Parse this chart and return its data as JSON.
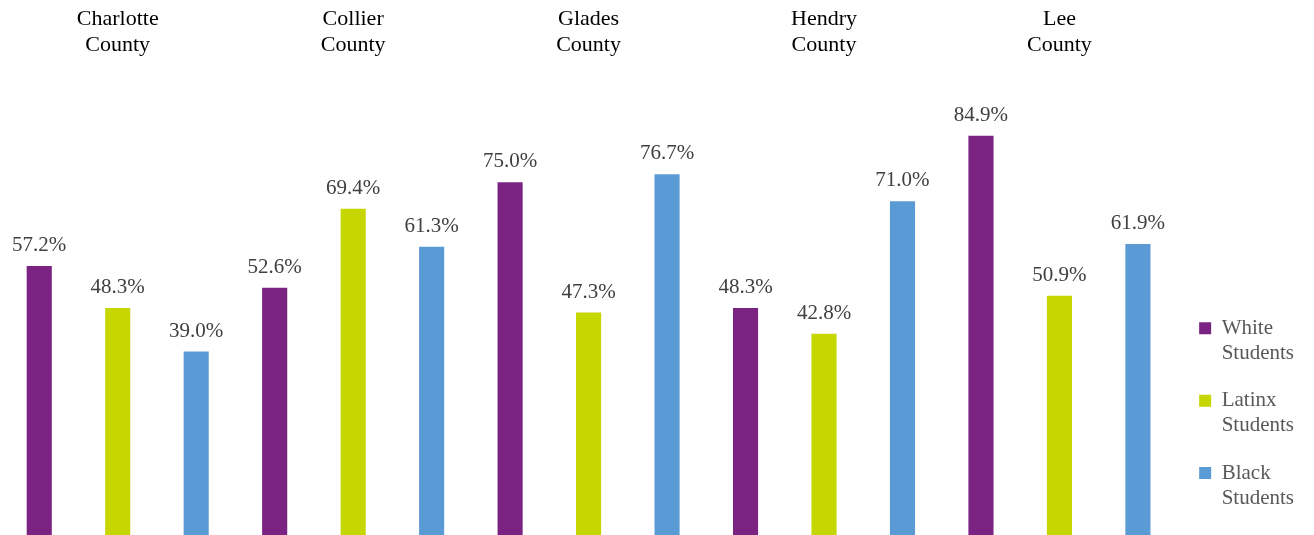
{
  "chart_data": {
    "type": "bar",
    "categories": [
      "Charlotte County",
      "Collier County",
      "Glades County",
      "Hendry County",
      "Lee County"
    ],
    "series": [
      {
        "name": "White Students",
        "color": "#7b2382",
        "values": [
          57.2,
          52.6,
          75.0,
          48.3,
          84.9
        ],
        "value_labels": [
          "57.2%",
          "52.6%",
          "75.0%",
          "48.3%",
          "84.9%"
        ]
      },
      {
        "name": "Latinx Students",
        "color": "#c5d600",
        "values": [
          48.3,
          69.4,
          47.3,
          42.8,
          50.9
        ],
        "value_labels": [
          "48.3%",
          "69.4%",
          "47.3%",
          "42.8%",
          "50.9%"
        ]
      },
      {
        "name": "Black Students",
        "color": "#5b9bd5",
        "values": [
          39.0,
          61.3,
          76.7,
          71.0,
          61.9
        ],
        "value_labels": [
          "39.0%",
          "61.3%",
          "76.7%",
          "71.0%",
          "61.9%"
        ]
      }
    ],
    "tick_labels": "x",
    "grid": false,
    "legend": "right"
  }
}
